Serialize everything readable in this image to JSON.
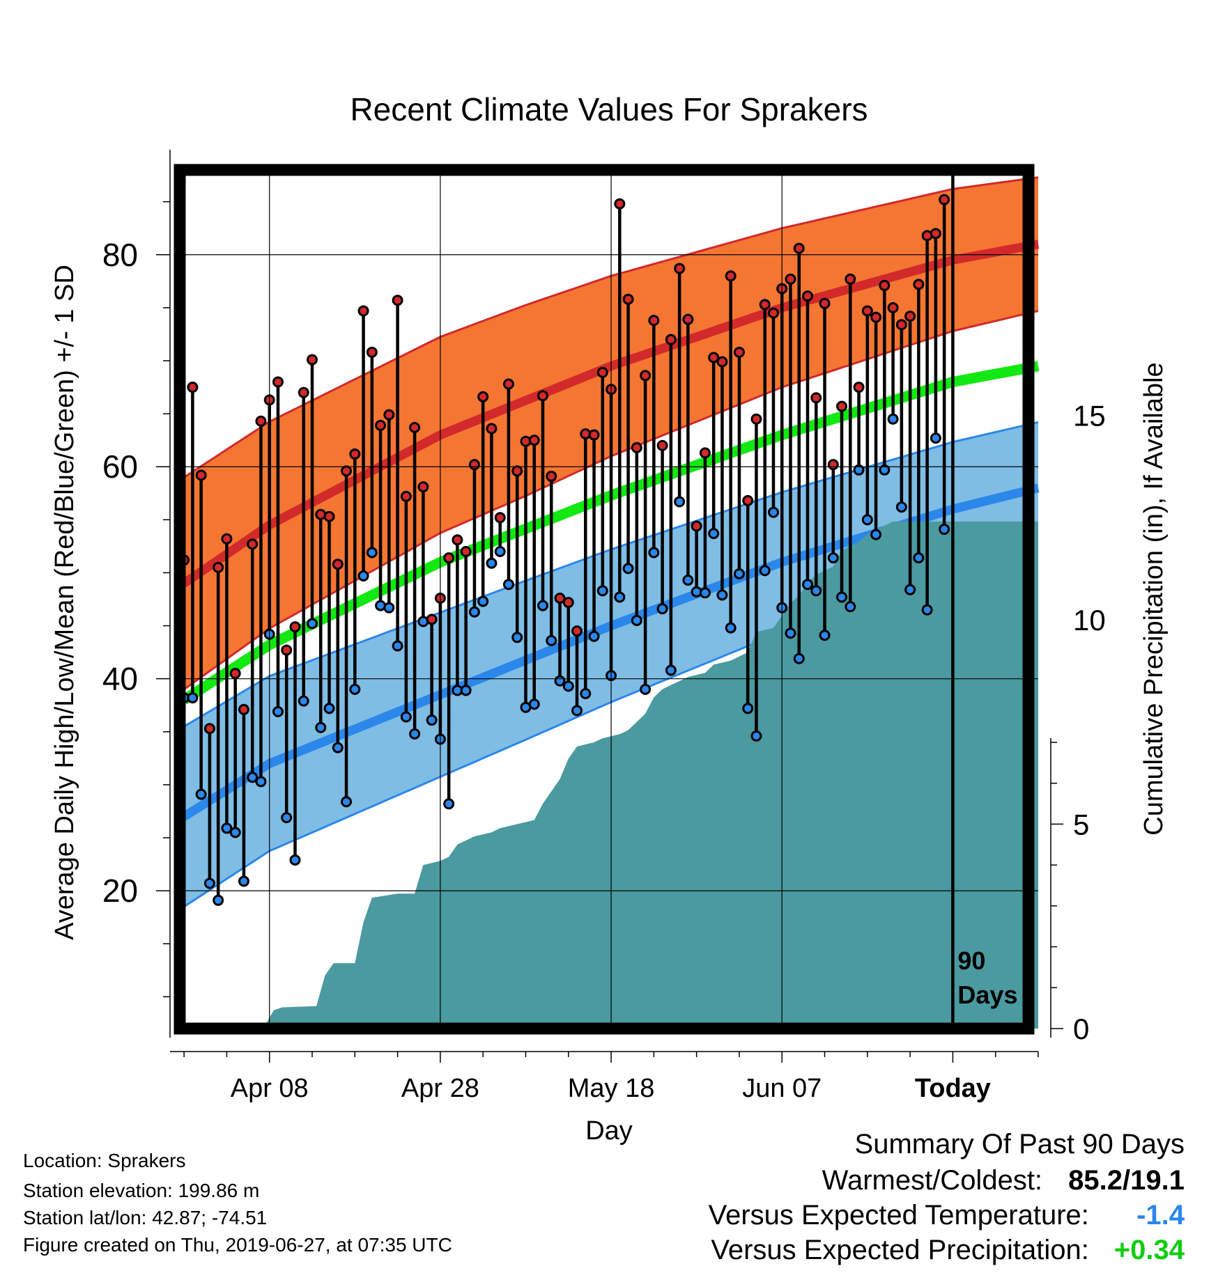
{
  "chart_data": {
    "type": "line",
    "title": "Recent Climate Values For Sprakers",
    "xlabel": "Day",
    "ylabel": "Average Daily High/Low/Mean (Red/Blue/Green) +/- 1 SD",
    "y2label": "Cumulative Precipitation (in), If Available",
    "x_tick_labels": [
      "Apr 08",
      "Apr 28",
      "May 18",
      "Jun 07",
      "Today"
    ],
    "x_tick_days": [
      10,
      30,
      50,
      70,
      90
    ],
    "ylim": [
      7,
      88
    ],
    "yticks": [
      20,
      40,
      60,
      80
    ],
    "y2lim": [
      0,
      21
    ],
    "y2ticks": [
      0,
      5,
      10,
      15
    ],
    "day_range": [
      -0.5,
      100
    ],
    "marker_line_label": [
      "90",
      "Days"
    ],
    "normal_high": {
      "mean": [
        [
          0,
          49
        ],
        [
          10,
          54.5
        ],
        [
          30,
          63
        ],
        [
          50,
          69.5
        ],
        [
          70,
          75
        ],
        [
          90,
          79.5
        ],
        [
          100,
          81
        ]
      ],
      "sd": [
        [
          0,
          10
        ],
        [
          40,
          9
        ],
        [
          70,
          7.5
        ],
        [
          100,
          6.3
        ]
      ]
    },
    "normal_low": {
      "mean": [
        [
          0,
          27
        ],
        [
          10,
          32
        ],
        [
          30,
          38.5
        ],
        [
          50,
          45
        ],
        [
          70,
          51
        ],
        [
          90,
          56
        ],
        [
          100,
          58
        ]
      ],
      "sd": [
        [
          0,
          8.5
        ],
        [
          40,
          7.5
        ],
        [
          70,
          6.6
        ],
        [
          100,
          6.2
        ]
      ]
    },
    "normal_mean": [
      [
        0,
        38
      ],
      [
        10,
        43.2
      ],
      [
        30,
        51
      ],
      [
        50,
        57.3
      ],
      [
        70,
        63
      ],
      [
        90,
        68
      ],
      [
        100,
        69.5
      ]
    ],
    "daily_high": [
      51.2,
      67.5,
      59.2,
      35.3,
      50.5,
      53.2,
      40.5,
      37.1,
      52.7,
      64.3,
      66.3,
      68.0,
      42.7,
      44.9,
      67.0,
      70.1,
      55.5,
      55.3,
      50.8,
      59.6,
      61.2,
      74.7,
      70.8,
      63.9,
      64.9,
      75.7,
      57.2,
      63.7,
      58.1,
      45.6,
      47.6,
      51.4,
      53.1,
      52.0,
      60.2,
      66.6,
      63.6,
      55.2,
      67.8,
      59.6,
      62.4,
      62.5,
      66.7,
      59.1,
      47.6,
      47.2,
      44.5,
      63.1,
      63.0,
      68.9,
      67.3,
      84.8,
      75.8,
      61.8,
      68.6,
      73.8,
      62.0,
      72.0,
      78.7,
      73.9,
      54.4,
      61.3,
      70.3,
      69.9,
      78.0,
      70.8,
      56.8,
      64.5,
      75.3,
      74.5,
      76.8,
      77.7,
      80.6,
      76.1,
      66.5,
      75.4,
      60.2,
      65.7,
      77.7,
      67.5,
      74.7,
      74.1,
      77.1,
      75.0,
      73.4,
      74.2,
      77.2,
      81.8,
      82.0,
      85.2
    ],
    "daily_low": [
      38.2,
      38.2,
      29.1,
      20.7,
      19.1,
      25.9,
      25.5,
      20.9,
      30.7,
      30.3,
      44.2,
      36.9,
      26.9,
      22.9,
      37.9,
      45.2,
      35.4,
      37.2,
      33.5,
      28.4,
      39.0,
      49.7,
      51.9,
      46.9,
      46.7,
      43.1,
      36.4,
      34.8,
      45.4,
      36.1,
      34.3,
      28.2,
      38.9,
      38.9,
      46.3,
      47.3,
      50.9,
      52.0,
      48.9,
      43.9,
      37.3,
      37.6,
      46.9,
      43.6,
      39.8,
      39.3,
      37.0,
      38.6,
      44.0,
      48.3,
      40.3,
      47.7,
      50.4,
      45.5,
      39.0,
      51.9,
      46.6,
      40.8,
      56.7,
      49.3,
      48.2,
      48.1,
      53.7,
      47.9,
      44.8,
      49.9,
      37.2,
      34.6,
      50.2,
      55.7,
      46.7,
      44.3,
      41.9,
      48.9,
      48.3,
      44.1,
      51.4,
      47.7,
      46.8,
      59.7,
      55.0,
      53.6,
      59.7,
      64.5,
      56.2,
      48.4,
      51.4,
      46.5,
      62.7,
      54.1
    ],
    "cumulative_precip": [
      [
        -0.5,
        0
      ],
      [
        6.5,
        0
      ],
      [
        7.5,
        0.05
      ],
      [
        9.5,
        0.08
      ],
      [
        10.5,
        0.45
      ],
      [
        11.5,
        0.52
      ],
      [
        15.5,
        0.55
      ],
      [
        16.5,
        1.3
      ],
      [
        17.5,
        1.6
      ],
      [
        20,
        1.6
      ],
      [
        21,
        2.6
      ],
      [
        22,
        3.2
      ],
      [
        25,
        3.3
      ],
      [
        27,
        3.3
      ],
      [
        28,
        4.0
      ],
      [
        30,
        4.1
      ],
      [
        31,
        4.2
      ],
      [
        32,
        4.5
      ],
      [
        34,
        4.7
      ],
      [
        36,
        4.8
      ],
      [
        37,
        4.9
      ],
      [
        39,
        5.0
      ],
      [
        41,
        5.1
      ],
      [
        42,
        5.5
      ],
      [
        44,
        6.1
      ],
      [
        45,
        6.6
      ],
      [
        46,
        6.9
      ],
      [
        48,
        7.0
      ],
      [
        49,
        7.1
      ],
      [
        51,
        7.2
      ],
      [
        52,
        7.3
      ],
      [
        54,
        7.7
      ],
      [
        55,
        8.1
      ],
      [
        56,
        8.3
      ],
      [
        57,
        8.4
      ],
      [
        59,
        8.6
      ],
      [
        61,
        8.7
      ],
      [
        62,
        8.9
      ],
      [
        64,
        9.0
      ],
      [
        66,
        9.2
      ],
      [
        67,
        9.7
      ],
      [
        69,
        9.8
      ],
      [
        71,
        10.4
      ],
      [
        72,
        10.6
      ],
      [
        73,
        10.9
      ],
      [
        74,
        11.1
      ],
      [
        76,
        11.3
      ],
      [
        77,
        11.7
      ],
      [
        79,
        11.9
      ],
      [
        80,
        12.1
      ],
      [
        81,
        12.2
      ],
      [
        82,
        12.3
      ],
      [
        83,
        12.4
      ],
      [
        84,
        12.4
      ],
      [
        100,
        12.4
      ]
    ]
  },
  "footer": {
    "location": "Location: Sprakers",
    "elevation": "Station elevation: 199.86 m",
    "latlon": "Station lat/lon: 42.87; -74.51",
    "created": "Figure created on Thu, 2019-06-27, at 07:35 UTC"
  },
  "summary": {
    "title": "Summary Of Past 90 Days",
    "warmest_label": "Warmest/Coldest:",
    "warmest_value": "85.2/19.1",
    "temp_label": "Versus Expected Temperature:",
    "temp_value": "-1.4",
    "precip_label": "Versus Expected Precipitation:",
    "precip_value": "+0.34"
  },
  "colors": {
    "high_band": "#f47632",
    "high_line": "#d2292b",
    "low_band": "#7fbde5",
    "low_line": "#2b87ea",
    "mean_line": "#12e812",
    "precip_fill": "#4a9aa0",
    "temp_value": "#2b87ea",
    "precip_value": "#12cc12"
  }
}
